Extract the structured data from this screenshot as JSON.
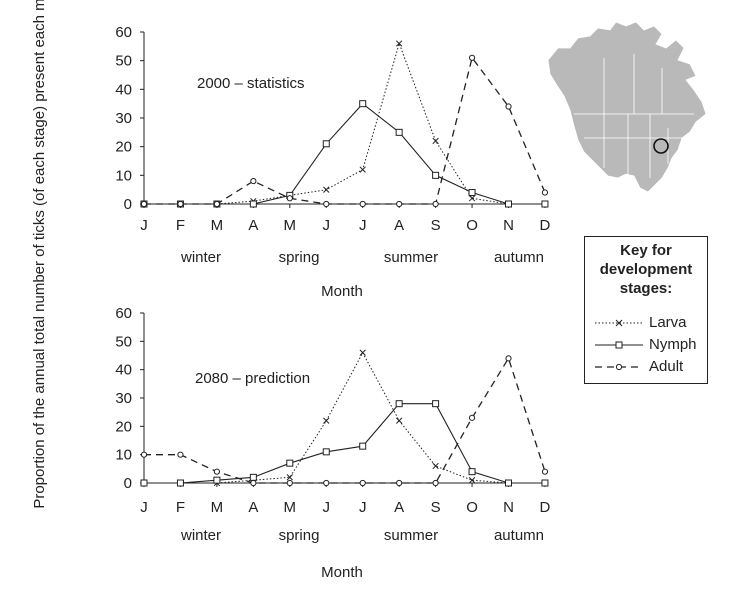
{
  "chart_data": [
    {
      "type": "line",
      "title": "2000 – statistics",
      "xlabel": "Month",
      "ylabel": "Proportion of the annual total number of ticks (of each stage) present each month / %",
      "categories": [
        "J",
        "F",
        "M",
        "A",
        "M",
        "J",
        "J",
        "A",
        "S",
        "O",
        "N",
        "D"
      ],
      "season_labels": [
        "winter",
        "spring",
        "summer",
        "autumn"
      ],
      "ylim": [
        0,
        60
      ],
      "yticks": [
        "0",
        "10",
        "20",
        "30",
        "40",
        "50",
        "60"
      ],
      "series": [
        {
          "name": "Larva",
          "values": [
            0,
            0,
            0,
            1,
            3,
            5,
            12,
            56,
            22,
            2,
            0,
            0
          ]
        },
        {
          "name": "Nymph",
          "values": [
            0,
            0,
            0,
            0,
            3,
            21,
            35,
            25,
            10,
            4,
            0,
            0
          ]
        },
        {
          "name": "Adult",
          "values": [
            0,
            0,
            0,
            8,
            2,
            0,
            0,
            0,
            0,
            51,
            34,
            4
          ]
        }
      ]
    },
    {
      "type": "line",
      "title": "2080 – prediction",
      "xlabel": "Month",
      "ylabel": "Proportion of the annual total number of ticks (of each stage) present each month / %",
      "categories": [
        "J",
        "F",
        "M",
        "A",
        "M",
        "J",
        "J",
        "A",
        "S",
        "O",
        "N",
        "D"
      ],
      "season_labels": [
        "winter",
        "spring",
        "summer",
        "autumn"
      ],
      "ylim": [
        0,
        60
      ],
      "yticks": [
        "0",
        "10",
        "20",
        "30",
        "40",
        "50",
        "60"
      ],
      "series": [
        {
          "name": "Larva",
          "values": [
            0,
            0,
            0,
            1,
            2,
            22,
            46,
            22,
            6,
            1,
            0,
            0
          ]
        },
        {
          "name": "Nymph",
          "values": [
            0,
            0,
            1,
            2,
            7,
            11,
            13,
            28,
            28,
            4,
            0,
            0
          ]
        },
        {
          "name": "Adult",
          "values": [
            10,
            10,
            4,
            0,
            0,
            0,
            0,
            0,
            0,
            23,
            44,
            4
          ]
        }
      ]
    }
  ],
  "legend": {
    "title_lines": [
      "Key for",
      "development",
      "stages:"
    ],
    "items": [
      "Larva",
      "Nymph",
      "Adult"
    ]
  },
  "styles": {
    "line_color": "#222222",
    "map_fill": "#b9b9b9",
    "map_border": "#ffffff"
  }
}
